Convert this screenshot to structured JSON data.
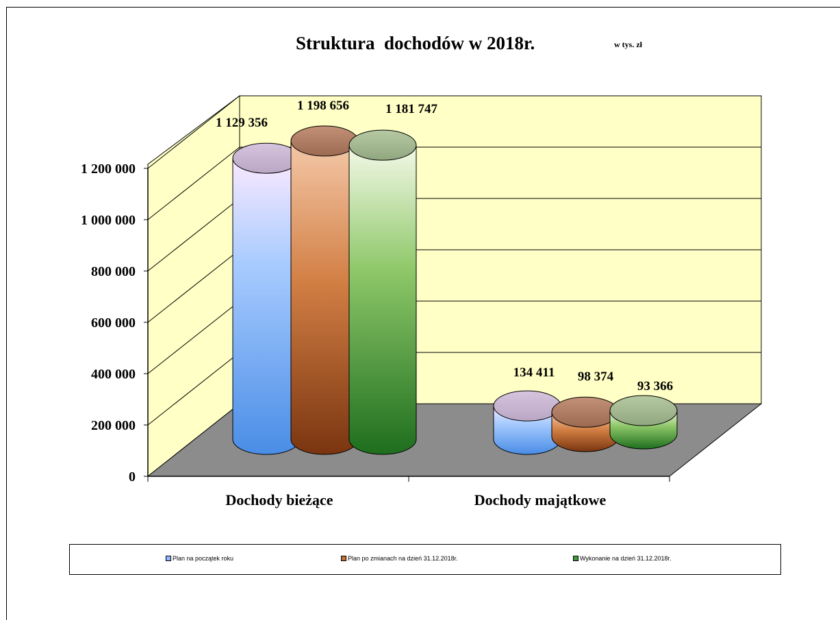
{
  "chart_data": {
    "type": "bar",
    "title": "Struktura  dochodów w 2018r.",
    "unit": "w tys. zł",
    "categories": [
      "Dochody bieżące",
      "Dochody majątkowe"
    ],
    "series": [
      {
        "name": "Plan na początek roku",
        "values": [
          1129356,
          134411
        ],
        "color": "#8fb8ff"
      },
      {
        "name": "Plan po zmianach na dzień 31.12.2018r.",
        "values": [
          1198656,
          98374
        ],
        "color": "#c0703a"
      },
      {
        "name": "Wykonanie na dzień 31.12.2018r.",
        "values": [
          1181747,
          93366
        ],
        "color": "#3f9a3f"
      }
    ],
    "data_labels": [
      [
        "1 129 356",
        "134 411"
      ],
      [
        "1 198 656",
        "98 374"
      ],
      [
        "1 181 747",
        "93 366"
      ]
    ],
    "y_ticks": [
      "0",
      "200 000",
      "400 000",
      "600 000",
      "800 000",
      "1 000 000",
      "1 200 000"
    ],
    "y_tick_values": [
      0,
      200000,
      400000,
      600000,
      800000,
      1000000,
      1200000
    ],
    "ylim": [
      0,
      1200000
    ],
    "grid": true,
    "legend_position": "bottom",
    "wall_color": "#ffffc6",
    "floor_color": "#8c8c8c"
  }
}
